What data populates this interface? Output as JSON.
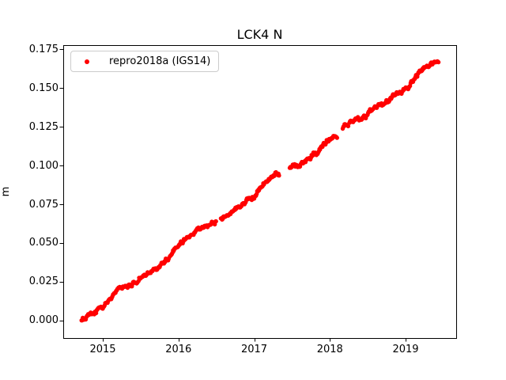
{
  "chart_data": {
    "type": "scatter",
    "title": "LCK4 N",
    "xlabel": "",
    "ylabel": "m",
    "background_color": "#ffffff",
    "legend": {
      "position": "upper left",
      "border_color": "#cccccc",
      "entries": [
        {
          "label": "repro2018a (IGS14)",
          "marker": "dot",
          "color": "#ff0000"
        }
      ]
    },
    "axes": {
      "xlim": [
        2014.478,
        2019.668
      ],
      "ylim": [
        -0.0113,
        0.1777
      ],
      "x_ticks": [
        2015,
        2016,
        2017,
        2018,
        2019
      ],
      "x_tick_labels": [
        "2015",
        "2016",
        "2017",
        "2018",
        "2019"
      ],
      "y_ticks": [
        0.0,
        0.025,
        0.05,
        0.075,
        0.1,
        0.125,
        0.15,
        0.175
      ],
      "y_tick_labels": [
        "0.000",
        "0.025",
        "0.050",
        "0.075",
        "0.100",
        "0.125",
        "0.150",
        "0.175"
      ],
      "grid": false,
      "spine_color": "#000000"
    },
    "series": [
      {
        "name": "repro2018a (IGS14)",
        "color": "#ff0000",
        "marker": "dot",
        "marker_radius_px": 2.7,
        "sample_step_years": 0.008,
        "noise_std_m": 0.0012,
        "segments": [
          [
            [
              2014.72,
              0.0
            ],
            [
              2014.8,
              0.0035
            ],
            [
              2014.9,
              0.006
            ],
            [
              2015.0,
              0.01
            ],
            [
              2015.1,
              0.0155
            ],
            [
              2015.22,
              0.02
            ],
            [
              2015.3,
              0.0225
            ],
            [
              2015.44,
              0.0245
            ],
            [
              2015.52,
              0.029
            ],
            [
              2015.62,
              0.031
            ],
            [
              2015.75,
              0.035
            ],
            [
              2015.85,
              0.04
            ],
            [
              2016.0,
              0.049
            ],
            [
              2016.1,
              0.053
            ],
            [
              2016.25,
              0.058
            ],
            [
              2016.38,
              0.0615
            ],
            [
              2016.5,
              0.0635
            ]
          ],
          [
            [
              2016.56,
              0.066
            ],
            [
              2016.7,
              0.07
            ],
            [
              2016.85,
              0.0745
            ],
            [
              2017.0,
              0.08
            ],
            [
              2017.1,
              0.0865
            ],
            [
              2017.2,
              0.091
            ],
            [
              2017.28,
              0.0945
            ],
            [
              2017.33,
              0.0935
            ]
          ],
          [
            [
              2017.47,
              0.098
            ],
            [
              2017.58,
              0.0995
            ],
            [
              2017.7,
              0.104
            ],
            [
              2017.85,
              0.109
            ],
            [
              2018.0,
              0.1175
            ],
            [
              2018.1,
              0.12
            ]
          ],
          [
            [
              2018.17,
              0.1245
            ],
            [
              2018.25,
              0.127
            ],
            [
              2018.33,
              0.1305
            ],
            [
              2018.4,
              0.13
            ],
            [
              2018.46,
              0.1315
            ],
            [
              2018.55,
              0.136
            ],
            [
              2018.65,
              0.139
            ],
            [
              2018.75,
              0.142
            ],
            [
              2018.85,
              0.1455
            ],
            [
              2018.95,
              0.148
            ],
            [
              2019.05,
              0.152
            ],
            [
              2019.15,
              0.158
            ],
            [
              2019.25,
              0.163
            ],
            [
              2019.33,
              0.1655
            ],
            [
              2019.4,
              0.166
            ],
            [
              2019.44,
              0.167
            ]
          ]
        ]
      }
    ]
  }
}
